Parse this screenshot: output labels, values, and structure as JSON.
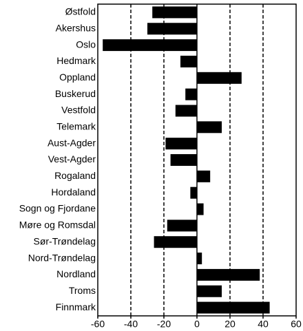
{
  "chart_data": {
    "type": "barh",
    "categories": [
      "Østfold",
      "Akershus",
      "Oslo",
      "Hedmark",
      "Oppland",
      "Buskerud",
      "Vestfold",
      "Telemark",
      "Aust-Agder",
      "Vest-Agder",
      "Rogaland",
      "Hordaland",
      "Sogn og Fjordane",
      "Møre og Romsdal",
      "Sør-Trøndelag",
      "Nord-Trøndelag",
      "Nordland",
      "Troms",
      "Finnmark"
    ],
    "values": [
      -27,
      -30,
      -57,
      -10,
      27,
      -7,
      -13,
      15,
      -19,
      -16,
      8,
      -4,
      4,
      -18,
      -26,
      3,
      38,
      15,
      44
    ],
    "color": "#000000",
    "xlim": [
      -60,
      60
    ],
    "xticks": [
      -60,
      -40,
      -20,
      0,
      20,
      40,
      60
    ],
    "grid": true
  }
}
